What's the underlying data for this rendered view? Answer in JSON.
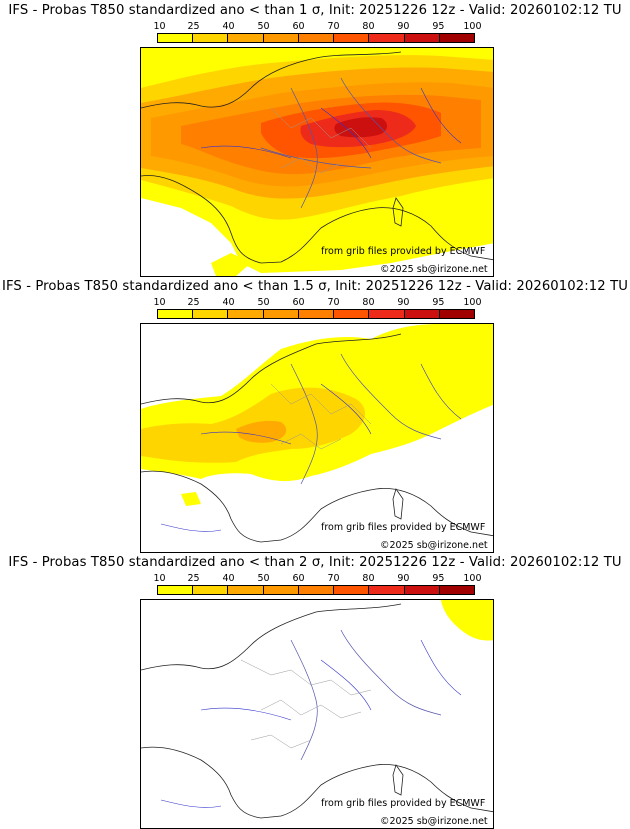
{
  "colorbar": {
    "ticks": [
      "10",
      "25",
      "40",
      "50",
      "60",
      "70",
      "80",
      "90",
      "95",
      "100"
    ],
    "colors": [
      "#ffff00",
      "#ffd500",
      "#ffaa00",
      "#ff9900",
      "#ff7f00",
      "#ff5500",
      "#ee2a1a",
      "#cc1010",
      "#a00000",
      "#6b0000"
    ]
  },
  "panels": [
    {
      "title": "IFS - Probas T850  standardized ano < than 1 σ, Init: 20251226 12z - Valid: 20260102:12 TU",
      "credit_source": "from grib files provided by ECMWF",
      "credit_copyright": "©2025 sb@irizone.net"
    },
    {
      "title": "IFS - Probas T850  standardized ano < than 1.5 σ, Init: 20251226 12z - Valid: 20260102:12 TU",
      "credit_source": "from grib files provided by ECMWF",
      "credit_copyright": "©2025 sb@irizone.net"
    },
    {
      "title": "IFS - Probas T850  standardized ano < than 2 σ, Init: 20251226 12z - Valid: 20260102:12 TU",
      "credit_source": "from grib files provided by ECMWF",
      "credit_copyright": "©2025 sb@irizone.net"
    }
  ]
}
